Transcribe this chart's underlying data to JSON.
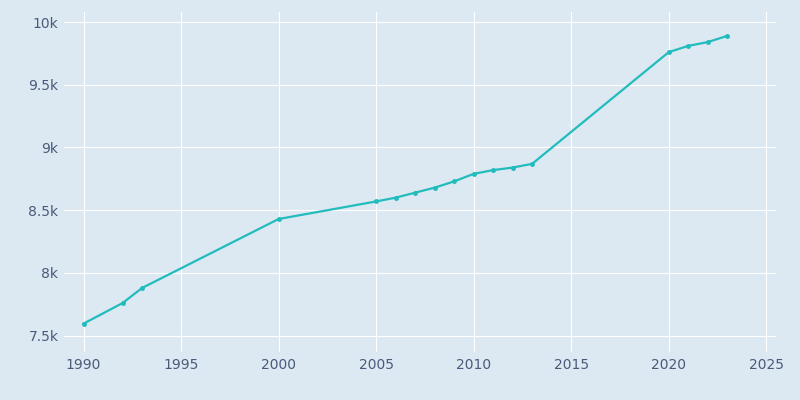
{
  "years": [
    1990,
    1992,
    1993,
    2000,
    2005,
    2006,
    2007,
    2008,
    2009,
    2010,
    2011,
    2012,
    2013,
    2020,
    2021,
    2022,
    2023
  ],
  "population": [
    7596,
    7760,
    7880,
    8430,
    8570,
    8600,
    8640,
    8680,
    8730,
    8790,
    8820,
    8840,
    8870,
    9760,
    9810,
    9840,
    9890
  ],
  "line_color": "#22BCBC",
  "fig_bg_color": "#dce9f2",
  "plot_bg_color": "#dce9f2",
  "grid_color": "#ffffff",
  "tick_label_color": "#4a5a7a",
  "xlim": [
    1989.0,
    2025.5
  ],
  "ylim": [
    7370,
    10080
  ],
  "xticks": [
    1990,
    1995,
    2000,
    2005,
    2010,
    2015,
    2020,
    2025
  ],
  "yticks": [
    7500,
    8000,
    8500,
    9000,
    9500,
    10000
  ],
  "ytick_labels": [
    "7.5k",
    "8k",
    "8.5k",
    "9k",
    "9.5k",
    "10k"
  ],
  "marker_size": 2.5,
  "line_width": 1.6
}
